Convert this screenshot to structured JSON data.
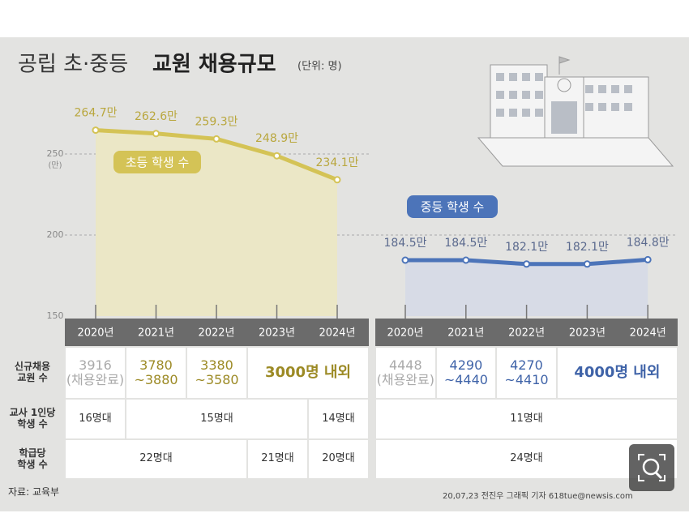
{
  "header": {
    "title": "공립 초·중등",
    "title_bold": "교원 채용규모",
    "unit": "(단위: 명)"
  },
  "chart_data": [
    {
      "type": "line",
      "categories": [
        "2020년",
        "2021년",
        "2022년",
        "2023년",
        "2024년"
      ],
      "series": [
        {
          "name": "초등 학생 수",
          "color": "#d4c356",
          "values": [
            264.7,
            262.6,
            259.3,
            248.9,
            234.1
          ],
          "value_labels": [
            "264.7만",
            "262.6만",
            "259.3만",
            "248.9만",
            "234.1만"
          ]
        }
      ],
      "fill": "#ebe7c6",
      "ylim": [
        150,
        270
      ],
      "yticks": [
        150,
        200,
        250
      ],
      "y_unit": "(만)",
      "grid": true
    },
    {
      "type": "line",
      "categories": [
        "2020년",
        "2021년",
        "2022년",
        "2023년",
        "2024년"
      ],
      "series": [
        {
          "name": "중등 학생 수",
          "color": "#4c74b9",
          "values": [
            184.5,
            184.5,
            182.1,
            182.1,
            184.8
          ],
          "value_labels": [
            "184.5만",
            "184.5만",
            "182.1만",
            "182.1만",
            "184.8만"
          ]
        }
      ],
      "fill": "#d7dbe6",
      "ylim": [
        150,
        270
      ]
    }
  ],
  "table": {
    "row_headers": [
      "신규채용\n교원 수",
      "교사 1인당\n학생 수",
      "학급당\n학생 수"
    ],
    "elementary": [
      [
        "3916\n(채용완료)",
        "3780\n~3880",
        "3380\n~3580",
        "3000명 내외"
      ],
      [
        "16명대",
        "15명대",
        "14명대"
      ],
      [
        "22명대",
        "21명대",
        "20명대"
      ]
    ],
    "middle": [
      [
        "4448\n(채용완료)",
        "4290\n~4440",
        "4270\n~4410",
        "4000명 내외"
      ],
      [
        "11명대"
      ],
      [
        "24명대"
      ]
    ]
  },
  "footer": {
    "source": "자료: 교육부",
    "credit": "20,07,23 전진우 그래픽 기자 618tue@newsis.com"
  }
}
